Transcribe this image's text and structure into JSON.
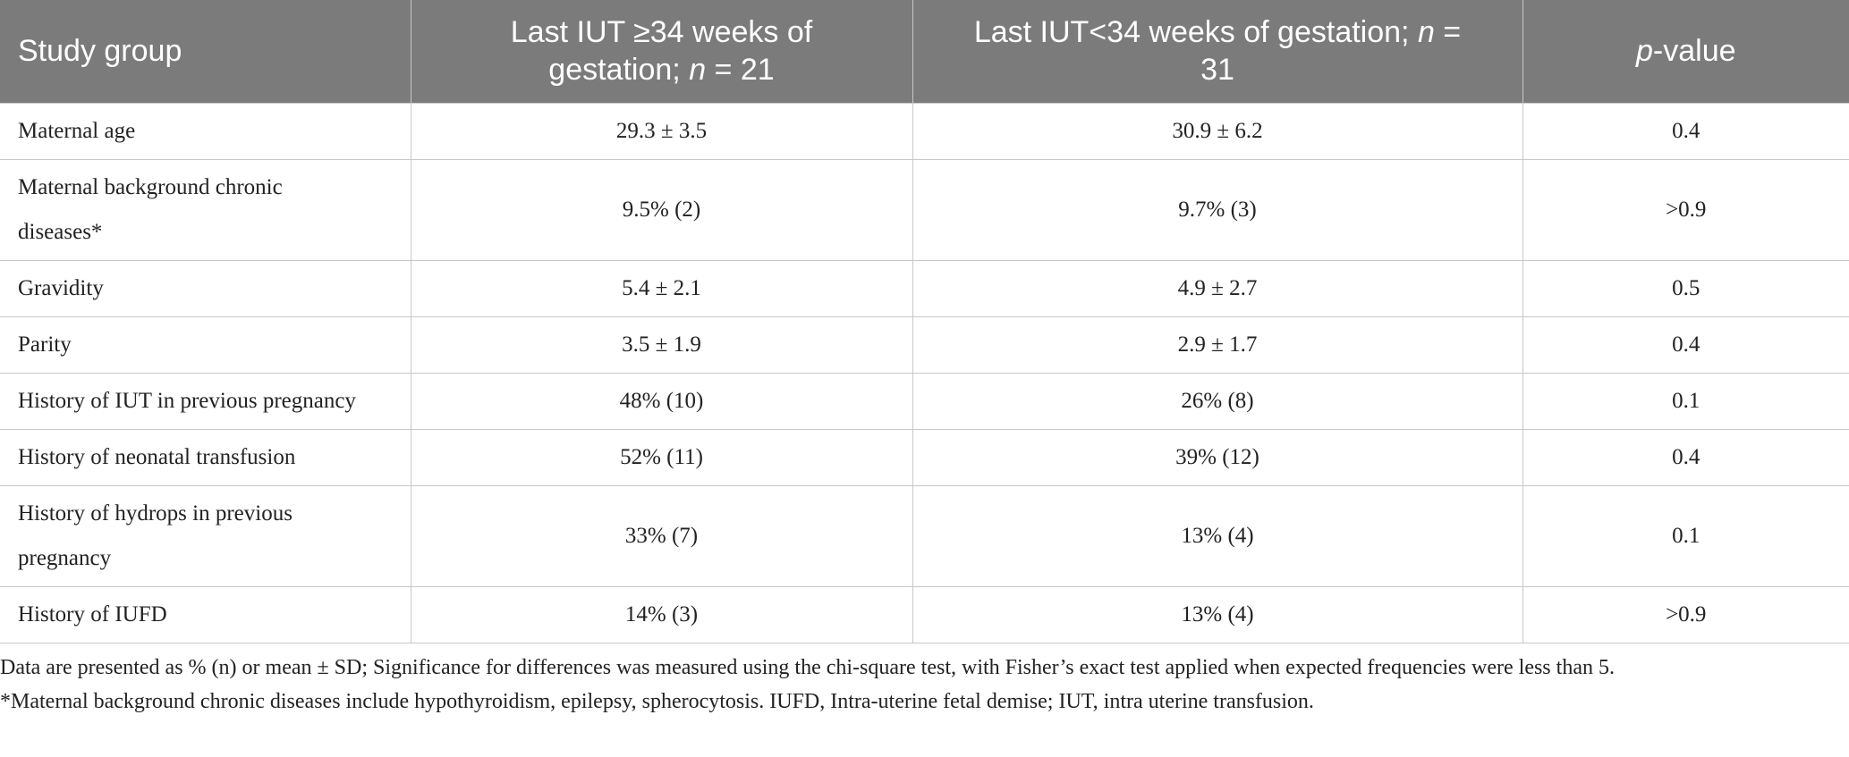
{
  "table": {
    "header": [
      [
        {
          "text": "Study group"
        }
      ],
      [
        {
          "text": "Last IUT ≥34 weeks of gestation; "
        },
        {
          "text": "n",
          "italic": true
        },
        {
          "text": " = 21"
        }
      ],
      [
        {
          "text": "Last IUT<34 weeks of gestation; "
        },
        {
          "text": "n",
          "italic": true
        },
        {
          "text": " = 31"
        }
      ],
      [
        {
          "text": "p",
          "italic": true
        },
        {
          "text": "-value"
        }
      ]
    ],
    "rows": [
      [
        "Maternal age",
        "29.3 ± 3.5",
        "30.9 ± 6.2",
        "0.4"
      ],
      [
        "Maternal background chronic diseases*",
        "9.5% (2)",
        "9.7% (3)",
        ">0.9"
      ],
      [
        "Gravidity",
        "5.4 ± 2.1",
        "4.9 ± 2.7",
        "0.5"
      ],
      [
        "Parity",
        "3.5 ± 1.9",
        "2.9 ± 1.7",
        "0.4"
      ],
      [
        "History of IUT in previous pregnancy",
        "48% (10)",
        "26% (8)",
        "0.1"
      ],
      [
        "History of neonatal transfusion",
        "52% (11)",
        "39% (12)",
        "0.4"
      ],
      [
        "History of hydrops in previous pregnancy",
        "33% (7)",
        "13% (4)",
        "0.1"
      ],
      [
        "History of IUFD",
        "14% (3)",
        "13% (4)",
        ">0.9"
      ]
    ]
  },
  "footnotes": [
    "Data are presented as % (n) or mean ± SD; Significance for differences was measured using the chi-square test, with Fisher’s exact test applied when expected frequencies were less than 5.",
    "*Maternal background chronic diseases include hypothyroidism, epilepsy, spherocytosis. IUFD, Intra-uterine fetal demise; IUT, intra uterine transfusion."
  ]
}
